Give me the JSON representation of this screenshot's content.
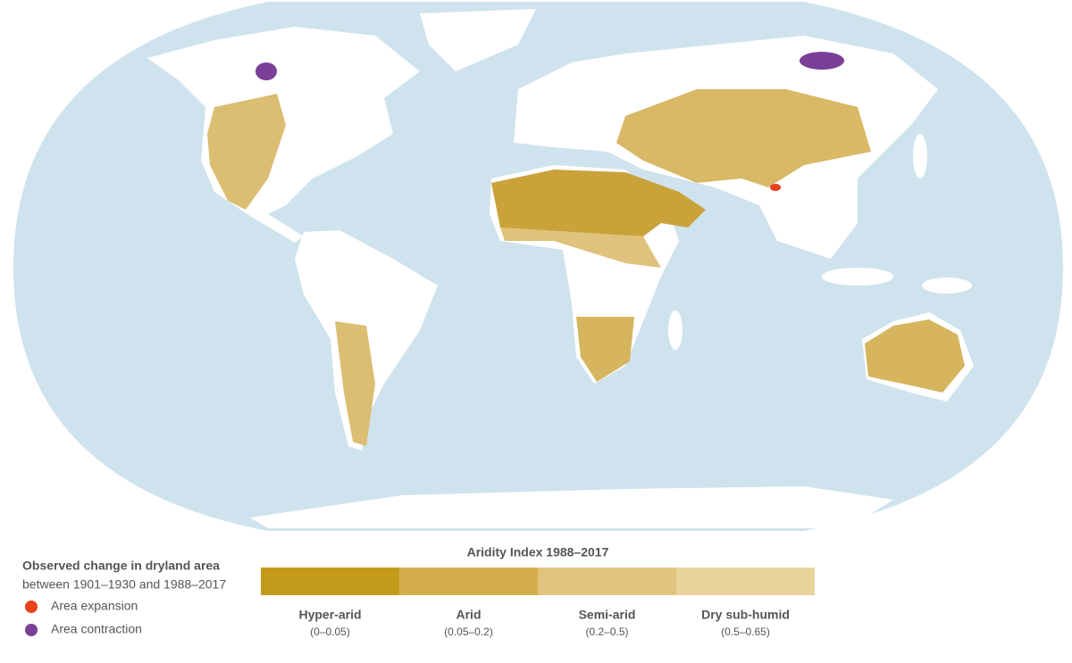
{
  "legend_change": {
    "title": "Observed change in dryland area",
    "subtitle": "between 1901–1930 and 1988–2017",
    "items": [
      {
        "label": "Area expansion",
        "color": "#e8431e"
      },
      {
        "label": "Area contraction",
        "color": "#7b3f98"
      }
    ]
  },
  "aridity_legend": {
    "title": "Aridity Index 1988–2017",
    "classes": [
      {
        "name": "Hyper-arid",
        "range": "(0–0.05)",
        "color": "#c49a1a"
      },
      {
        "name": "Arid",
        "range": "(0.05–0.2)",
        "color": "#d4ae4c"
      },
      {
        "name": "Semi-arid",
        "range": "(0.2–0.5)",
        "color": "#e0c47e"
      },
      {
        "name": "Dry sub-humid",
        "range": "(0.5–0.65)",
        "color": "#ead49c"
      }
    ]
  }
}
